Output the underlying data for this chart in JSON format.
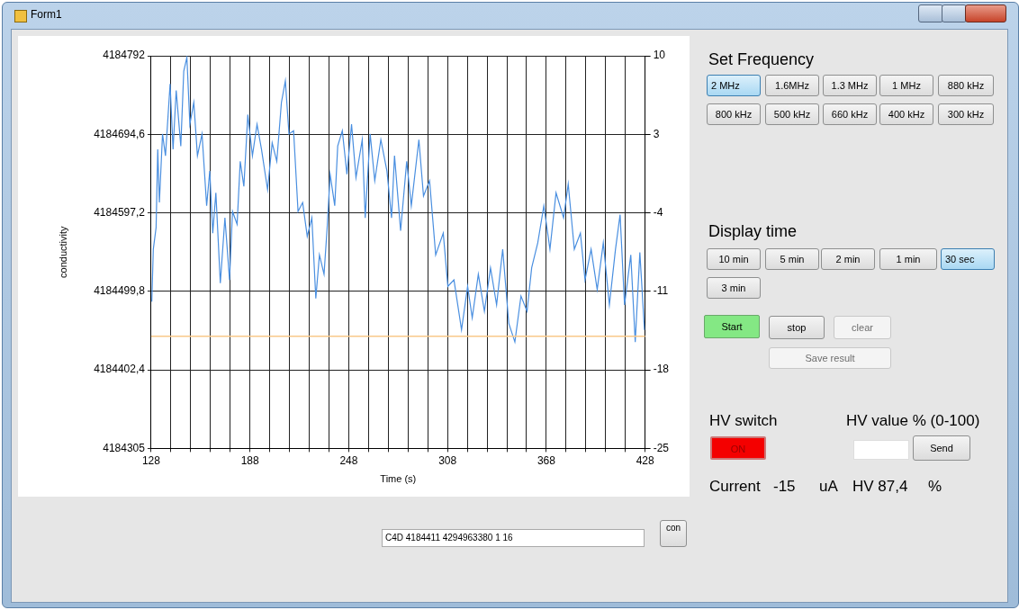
{
  "chart_data": [
    {
      "type": "line",
      "xlabel": "Time (s)",
      "ylabel": "conductivity",
      "color": "#4a8fe0",
      "x": [
        128.4,
        129.3,
        131,
        132,
        133,
        134.9,
        136.7,
        139.5,
        141.3,
        143.2,
        146,
        147.8,
        149.7,
        151.5,
        153.9,
        156.1,
        158.9,
        161.7,
        163.6,
        165.4,
        167.3,
        170,
        172.8,
        175.6,
        177.4,
        180.2,
        182.1,
        184.3,
        186.7,
        189.5,
        192.3,
        195,
        198.7,
        201.5,
        204.3,
        207.1,
        209.5,
        211.7,
        214.5,
        217.2,
        220,
        222.8,
        225.6,
        228,
        230.2,
        233,
        234.9,
        236.7,
        239.5,
        241.3,
        244.1,
        246.9,
        249.7,
        252.4,
        256.2,
        258,
        261,
        263.8,
        267.5,
        271.2,
        274,
        275.8,
        279.5,
        283.2,
        286,
        290.6,
        293.4,
        297.1,
        300.8,
        305.4,
        308.2,
        311.9,
        316.5,
        320.2,
        323,
        326.7,
        330.4,
        334.1,
        337.8,
        341.5,
        345.2,
        348.9,
        352.6,
        356.3,
        359.1,
        362.8,
        366.5,
        370.2,
        373.9,
        378.5,
        381.3,
        385,
        388.7,
        391.5,
        395.2,
        398.9,
        402.6,
        406.3,
        410,
        412.8,
        415.5,
        419.3,
        422,
        424.8,
        427.6
      ],
      "values": [
        4184487,
        4184552,
        4184579,
        4184676,
        4184610,
        4184695,
        4184668,
        4184757,
        4184676,
        4184749,
        4184680,
        4184773,
        4184790,
        4184707,
        4184734,
        4184668,
        4184695,
        4184606,
        4184649,
        4184572,
        4184622,
        4184510,
        4184591,
        4184514,
        4184599,
        4184583,
        4184661,
        4184630,
        4184719,
        4184668,
        4184707,
        4184676,
        4184626,
        4184684,
        4184661,
        4184734,
        4184761,
        4184695,
        4184699,
        4184599,
        4184610,
        4184568,
        4184591,
        4184491,
        4184545,
        4184521,
        4184579,
        4184645,
        4184606,
        4184680,
        4184699,
        4184645,
        4184707,
        4184641,
        4184688,
        4184591,
        4184695,
        4184637,
        4184688,
        4184649,
        4184591,
        4184668,
        4184575,
        4184661,
        4184606,
        4184688,
        4184618,
        4184637,
        4184545,
        4184572,
        4184506,
        4184514,
        4184452,
        4184506,
        4184467,
        4184521,
        4184475,
        4184529,
        4184483,
        4184552,
        4184460,
        4184437,
        4184494,
        4184475,
        4184529,
        4184560,
        4184606,
        4184552,
        4184622,
        4184591,
        4184633,
        4184552,
        4184572,
        4184514,
        4184552,
        4184502,
        4184560,
        4184483,
        4184552,
        4184595,
        4184483,
        4184545,
        4184437,
        4184548,
        4184452
      ],
      "xlim": [
        128,
        428
      ],
      "xticks": [
        128,
        {
          "value": 140,
          "label": null
        },
        {
          "value": 152,
          "label": null
        },
        {
          "value": 164,
          "label": null
        },
        {
          "value": 176,
          "label": null
        },
        188,
        {
          "value": 200,
          "label": null
        },
        {
          "value": 212,
          "label": null
        },
        {
          "value": 224,
          "label": null
        },
        {
          "value": 236,
          "label": null
        },
        248,
        {
          "value": 260,
          "label": null
        },
        {
          "value": 272,
          "label": null
        },
        {
          "value": 284,
          "label": null
        },
        {
          "value": 296,
          "label": null
        },
        308,
        {
          "value": 320,
          "label": null
        },
        {
          "value": 332,
          "label": null
        },
        {
          "value": 344,
          "label": null
        },
        {
          "value": 356,
          "label": null
        },
        368,
        {
          "value": 380,
          "label": null
        },
        {
          "value": 392,
          "label": null
        },
        {
          "value": 404,
          "label": null
        },
        {
          "value": 416,
          "label": null
        },
        428
      ],
      "ylim": [
        4184305,
        4184792
      ],
      "yticks": [
        4184305,
        {
          "value": 4184402.4,
          "label": "4184402,4"
        },
        {
          "value": 4184499.8,
          "label": "4184499,8"
        },
        {
          "value": 4184597.2,
          "label": "4184597,2"
        },
        {
          "value": 4184694.6,
          "label": "4184694,6"
        },
        4184792
      ],
      "y2lim": [
        -25,
        10
      ],
      "y2ticks": [
        -25,
        -18,
        -11,
        -4,
        3,
        10
      ],
      "ref_lines": [
        {
          "axis": "y2",
          "value": -15,
          "color": "#f9c98a"
        }
      ],
      "grid": true
    },
    {
      "type": "other",
      "annotations": [
        "Form1",
        "Set Frequency",
        "2 MHz",
        "1.6MHz",
        "1.3 MHz",
        "1 MHz",
        "880 kHz",
        "800 kHz",
        "500 kHz",
        "660 kHz",
        "400 kHz",
        "300 kHz",
        "Display time",
        "10 min",
        "5 min",
        "2 min",
        "1 min",
        "30 sec",
        "3 min",
        "Start",
        "stop",
        "clear",
        "Save result",
        "HV switch",
        "ON",
        "HV value % (0-100)",
        "Send",
        "Current",
        "-15",
        "uA",
        "HV 87,4",
        "%",
        "C4D 4184411 4294963380 1 16",
        "con"
      ]
    }
  ]
}
